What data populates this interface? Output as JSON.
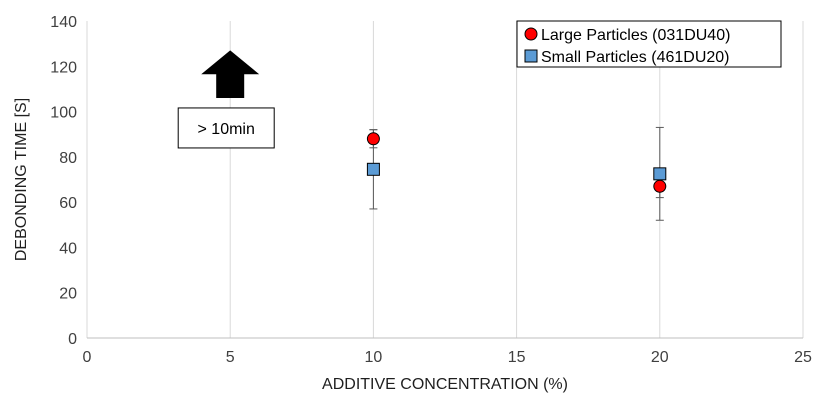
{
  "chart_data": {
    "type": "scatter",
    "xlabel": "ADDITIVE CONCENTRATION (%)",
    "ylabel": "DEBONDING TIME [S]",
    "xlim": [
      0,
      25
    ],
    "ylim": [
      0,
      140
    ],
    "xticks": [
      0,
      5,
      10,
      15,
      20,
      25
    ],
    "yticks": [
      0,
      20,
      40,
      60,
      80,
      100,
      120,
      140
    ],
    "grid": "vertical",
    "legend_position": "top-right",
    "series": [
      {
        "name": "Large Particles (031DU40)",
        "marker": "circle",
        "color": "#ff0000",
        "points": [
          {
            "x": 10,
            "y": 88,
            "err_low": 84,
            "err_high": 92
          },
          {
            "x": 20,
            "y": 67,
            "err_low": 62,
            "err_high": 71
          }
        ]
      },
      {
        "name": "Small Particles (461DU20)",
        "marker": "square",
        "color": "#5b9bd5",
        "points": [
          {
            "x": 10,
            "y": 74.5,
            "err_low": 57,
            "err_high": 92
          },
          {
            "x": 20,
            "y": 72.5,
            "err_low": 52,
            "err_high": 93
          }
        ]
      }
    ],
    "annotations": [
      {
        "type": "up-arrow",
        "x": 5,
        "y_base": 106,
        "y_tip": 127
      },
      {
        "type": "text-box",
        "text": "> 10min",
        "x": 5,
        "y": 91
      }
    ]
  }
}
